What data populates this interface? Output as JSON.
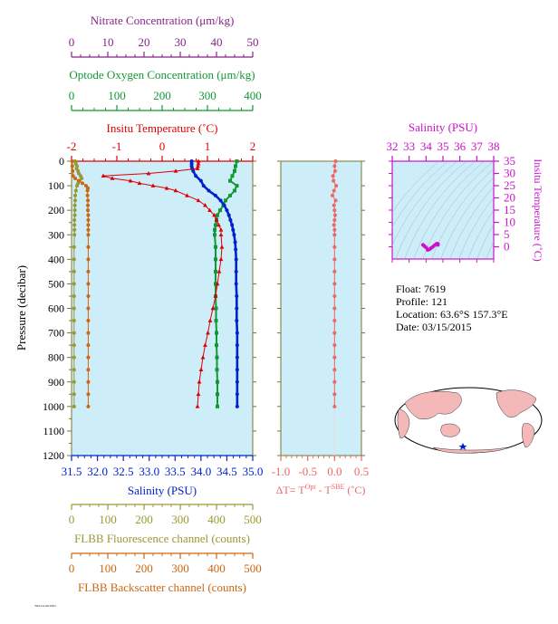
{
  "colors": {
    "nitrate": "#882288",
    "oxygen": "#119933",
    "temperature": "#dd0000",
    "salinity": "#0022cc",
    "fluorescence": "#999933",
    "backscatter": "#cc6611",
    "delta_t": "#ee6666",
    "ts_axes": "#cc11cc",
    "plot_bg": "#cdeef8",
    "ocean": "#ffffff",
    "land": "#f4b8b8"
  },
  "info": {
    "float": "Float:  7619",
    "profile": "Profile:  121",
    "location": "Location:  63.6°S  157.3°E",
    "date": "Date:  03/15/2015"
  },
  "credit": "7619.121.20150315",
  "chart_data": [
    {
      "type": "line",
      "name": "main-profile",
      "ylabel": "Pressure (decibar)",
      "ylim": [
        1200,
        0
      ],
      "yticks": [
        "0",
        "100",
        "200",
        "300",
        "400",
        "500",
        "600",
        "700",
        "800",
        "900",
        "1000",
        "1100",
        "1200"
      ],
      "axes": {
        "nitrate": {
          "label": "Nitrate Concentration (μm/kg)",
          "lim": [
            0,
            50
          ],
          "ticks": [
            "0",
            "10",
            "20",
            "30",
            "40",
            "50"
          ]
        },
        "oxygen": {
          "label": "Optode Oxygen Concentration (μm/kg)",
          "lim": [
            0,
            400
          ],
          "ticks": [
            "0",
            "100",
            "200",
            "300",
            "400"
          ]
        },
        "temperature": {
          "label": "Insitu Temperature (˚C)",
          "lim": [
            -2,
            2
          ],
          "ticks": [
            "-2",
            "-1",
            "0",
            "1",
            "2"
          ]
        },
        "salinity": {
          "label": "Salinity (PSU)",
          "lim": [
            31.5,
            35.0
          ],
          "ticks": [
            "31.5",
            "32.0",
            "32.5",
            "33.0",
            "33.5",
            "34.0",
            "34.5",
            "35.0"
          ]
        },
        "fluorescence": {
          "label": "FLBB Fluorescence channel (counts)",
          "lim": [
            0,
            500
          ],
          "ticks": [
            "0",
            "100",
            "200",
            "300",
            "400",
            "500"
          ]
        },
        "backscatter": {
          "label": "FLBB Backscatter channel (counts)",
          "lim": [
            0,
            500
          ],
          "ticks": [
            "0",
            "100",
            "200",
            "300",
            "400",
            "500"
          ]
        }
      },
      "series": [
        {
          "key": "temperature",
          "marker": "triangle",
          "p": [
            0,
            10,
            20,
            30,
            40,
            50,
            60,
            70,
            80,
            90,
            100,
            110,
            120,
            140,
            160,
            180,
            200,
            220,
            240,
            260,
            280,
            300,
            350,
            400,
            450,
            500,
            550,
            600,
            650,
            700,
            750,
            800,
            850,
            900,
            950,
            1000
          ],
          "values": [
            0.8,
            0.8,
            0.79,
            0.78,
            0.3,
            -0.3,
            -1.3,
            -1.1,
            -0.7,
            -0.5,
            -0.2,
            0.1,
            0.3,
            0.55,
            0.8,
            0.95,
            1.05,
            1.15,
            1.2,
            1.25,
            1.3,
            1.3,
            1.32,
            1.3,
            1.26,
            1.22,
            1.18,
            1.12,
            1.06,
            1.01,
            0.95,
            0.9,
            0.86,
            0.82,
            0.8,
            0.78
          ]
        },
        {
          "key": "salinity",
          "marker": "circle",
          "p": [
            0,
            10,
            20,
            30,
            40,
            60,
            80,
            100,
            120,
            140,
            160,
            180,
            200,
            220,
            240,
            260,
            280,
            300,
            330,
            360,
            400,
            450,
            500,
            550,
            600,
            650,
            700,
            750,
            800,
            850,
            900,
            950,
            1000
          ],
          "values": [
            33.82,
            33.82,
            33.82,
            33.83,
            33.85,
            33.9,
            34.0,
            34.05,
            34.15,
            34.28,
            34.38,
            34.45,
            34.5,
            34.54,
            34.57,
            34.6,
            34.62,
            34.64,
            34.66,
            34.67,
            34.68,
            34.68,
            34.68,
            34.69,
            34.69,
            34.69,
            34.7,
            34.7,
            34.7,
            34.7,
            34.7,
            34.7,
            34.7
          ]
        },
        {
          "key": "oxygen",
          "marker": "square",
          "p": [
            0,
            20,
            40,
            60,
            80,
            100,
            120,
            140,
            160,
            180,
            200,
            220,
            240,
            260,
            280,
            300,
            350,
            400,
            450,
            500,
            550,
            600,
            650,
            700,
            750,
            800,
            850,
            900,
            950,
            1000
          ],
          "values": [
            365,
            362,
            360,
            355,
            350,
            365,
            360,
            350,
            340,
            335,
            328,
            322,
            320,
            318,
            316,
            316,
            318,
            318,
            318,
            318,
            318,
            319,
            319,
            320,
            320,
            321,
            321,
            322,
            322,
            322
          ]
        },
        {
          "key": "fluorescence",
          "marker": "circle",
          "p": [
            0,
            10,
            20,
            30,
            40,
            50,
            60,
            70,
            80,
            90,
            100,
            120,
            140,
            160,
            180,
            200,
            220,
            240,
            260,
            280,
            300,
            350,
            400,
            450,
            500,
            550,
            600,
            650,
            700,
            750,
            800,
            850,
            900,
            950,
            1000
          ],
          "values": [
            10,
            12,
            15,
            14,
            18,
            20,
            25,
            28,
            22,
            18,
            15,
            12,
            10,
            10,
            9,
            9,
            9,
            8,
            8,
            8,
            8,
            7,
            7,
            7,
            7,
            7,
            7,
            7,
            7,
            7,
            7,
            7,
            7,
            7,
            7
          ]
        },
        {
          "key": "backscatter",
          "marker": "circle",
          "p": [
            0,
            20,
            40,
            60,
            70,
            80,
            90,
            100,
            110,
            120,
            140,
            160,
            180,
            200,
            220,
            240,
            260,
            280,
            300,
            350,
            400,
            450,
            500,
            550,
            600,
            650,
            700,
            750,
            800,
            850,
            900,
            950,
            1000
          ],
          "values": [
            2,
            2,
            3,
            4,
            10,
            20,
            30,
            40,
            45,
            44,
            44,
            45,
            45,
            45,
            46,
            46,
            46,
            46,
            46,
            46,
            46,
            46,
            46,
            46,
            46,
            46,
            46,
            46,
            46,
            46,
            46,
            46,
            46
          ]
        }
      ]
    },
    {
      "type": "line",
      "name": "delta-t",
      "xlabel": "ΔT= T^Opt - T^SBE (˚C)",
      "xlim": [
        -1.0,
        0.5
      ],
      "xticks": [
        "-1.0",
        "-0.5",
        "0.0",
        "0.5"
      ],
      "ylim": [
        1200,
        0
      ],
      "series": [
        {
          "marker": "circle",
          "p": [
            0,
            20,
            40,
            60,
            80,
            100,
            120,
            140,
            160,
            180,
            200,
            220,
            240,
            260,
            280,
            300,
            350,
            400,
            450,
            500,
            550,
            600,
            650,
            700,
            750,
            800,
            850,
            900,
            950,
            1000
          ],
          "values": [
            0.02,
            0.0,
            0.01,
            -0.03,
            -0.02,
            0.03,
            -0.01,
            -0.04,
            0.02,
            -0.01,
            0.0,
            0.01,
            0.0,
            -0.01,
            0.0,
            0.0,
            0.0,
            0.0,
            0.0,
            0.0,
            0.0,
            0.0,
            0.0,
            0.0,
            0.0,
            0.0,
            0.0,
            0.0,
            0.0,
            0.0
          ]
        }
      ]
    },
    {
      "type": "scatter",
      "name": "ts-diagram",
      "xlabel": "Salinity (PSU)",
      "ylabel": "Insitu Temperature (˚C)",
      "xlim": [
        32,
        38
      ],
      "ylim": [
        -5,
        35
      ],
      "xticks": [
        "32",
        "33",
        "34",
        "35",
        "36",
        "37",
        "38"
      ],
      "yticks": [
        "0",
        "5",
        "10",
        "15",
        "20",
        "25",
        "30",
        "35"
      ],
      "series": [
        {
          "x": [
            33.82,
            33.9,
            34.0,
            34.1,
            34.2,
            34.3,
            34.4,
            34.5,
            34.6,
            34.65,
            34.7,
            34.7,
            34.7
          ],
          "y": [
            0.8,
            0.3,
            -0.3,
            -1.3,
            -1.0,
            -0.5,
            0.0,
            0.6,
            1.1,
            1.3,
            1.2,
            1.0,
            0.8
          ]
        }
      ]
    }
  ]
}
